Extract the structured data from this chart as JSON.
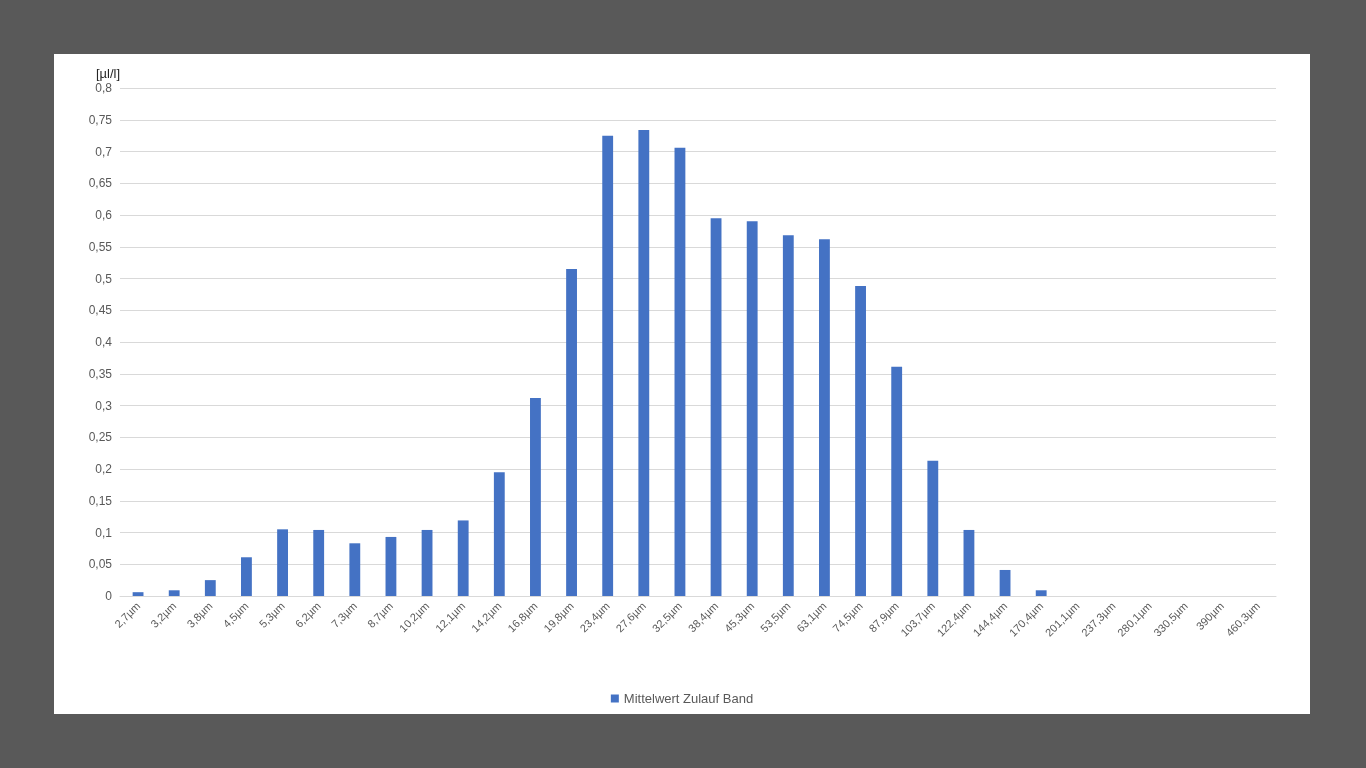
{
  "chart_data": {
    "type": "bar",
    "ylabel": "[µl/l]",
    "categories": [
      "2,7µm",
      "3,2µm",
      "3,8µm",
      "4,5µm",
      "5,3µm",
      "6,2µm",
      "7,3µm",
      "8,7µm",
      "10,2µm",
      "12,1µm",
      "14,2µm",
      "16,8µm",
      "19,8µm",
      "23,4µm",
      "27,6µm",
      "32,5µm",
      "38,4µm",
      "45,3µm",
      "53,5µm",
      "63,1µm",
      "74,5µm",
      "87,9µm",
      "103,7µm",
      "122,4µm",
      "144,4µm",
      "170,4µm",
      "201,1µm",
      "237,3µm",
      "280,1µm",
      "330,5µm",
      "390µm",
      "460,3µm"
    ],
    "series": [
      {
        "name": "Mittelwert Zulauf Band",
        "color": "#4472c4",
        "values": [
          0.006,
          0.009,
          0.025,
          0.061,
          0.105,
          0.104,
          0.083,
          0.093,
          0.104,
          0.119,
          0.195,
          0.312,
          0.515,
          0.725,
          0.734,
          0.706,
          0.595,
          0.59,
          0.568,
          0.562,
          0.488,
          0.361,
          0.213,
          0.104,
          0.041,
          0.009,
          0,
          0,
          0,
          0,
          0,
          0
        ]
      }
    ],
    "ylim": [
      0,
      0.8
    ],
    "yticks": [
      {
        "value": 0,
        "label": "0"
      },
      {
        "value": 0.05,
        "label": "0,05"
      },
      {
        "value": 0.1,
        "label": "0,1"
      },
      {
        "value": 0.15,
        "label": "0,15"
      },
      {
        "value": 0.2,
        "label": "0,2"
      },
      {
        "value": 0.25,
        "label": "0,25"
      },
      {
        "value": 0.3,
        "label": "0,3"
      },
      {
        "value": 0.35,
        "label": "0,35"
      },
      {
        "value": 0.4,
        "label": "0,4"
      },
      {
        "value": 0.45,
        "label": "0,45"
      },
      {
        "value": 0.5,
        "label": "0,5"
      },
      {
        "value": 0.55,
        "label": "0,55"
      },
      {
        "value": 0.6,
        "label": "0,6"
      },
      {
        "value": 0.65,
        "label": "0,65"
      },
      {
        "value": 0.7,
        "label": "0,7"
      },
      {
        "value": 0.75,
        "label": "0,75"
      },
      {
        "value": 0.8,
        "label": "0,8"
      }
    ],
    "grid": "y",
    "legend": "bottom"
  }
}
